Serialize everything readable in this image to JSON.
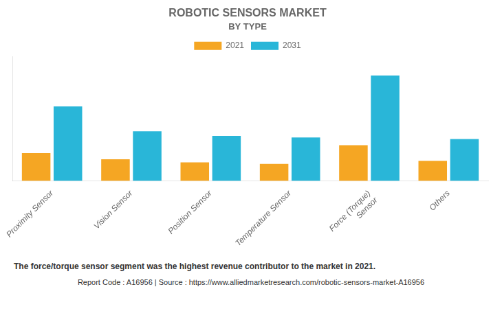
{
  "chart_data": {
    "type": "bar",
    "title": "ROBOTIC SENSORS MARKET",
    "subtitle": "BY TYPE",
    "categories": [
      "Proximity Sensor",
      "Vision Sensor",
      "Position Sensor",
      "Temperature Sensor",
      "Force (Torque)\nSensor",
      "Others"
    ],
    "series": [
      {
        "name": "2021",
        "color": "#F5A623",
        "values": [
          1.8,
          1.4,
          1.2,
          1.1,
          2.3,
          1.3
        ]
      },
      {
        "name": "2031",
        "color": "#29B6D8",
        "values": [
          4.8,
          3.2,
          2.9,
          2.8,
          6.8,
          2.7
        ]
      }
    ],
    "ylim": [
      0,
      8
    ],
    "grid": false,
    "legend": "top",
    "tick_labels": "x",
    "annotations": [
      "The force/torque sensor segment was the highest revenue contributor to the market in 2021.",
      "Report Code : A16956  |  Source : https://www.alliedmarketresearch.com/robotic-sensors-market-A16956"
    ]
  }
}
